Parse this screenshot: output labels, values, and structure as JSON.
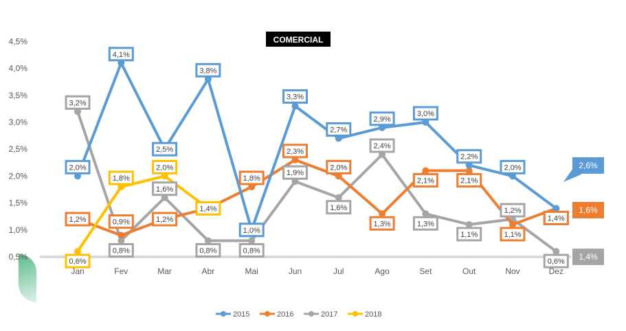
{
  "chart_data": {
    "type": "line",
    "title": "COMERCIAL",
    "categories": [
      "Jan",
      "Fev",
      "Mar",
      "Abr",
      "Mai",
      "Jun",
      "Jul",
      "Ago",
      "Set",
      "Out",
      "Nov",
      "Dez"
    ],
    "y_ticks": [
      "0,5%",
      "1,0%",
      "1,5%",
      "2,0%",
      "2,5%",
      "3,0%",
      "3,5%",
      "4,0%",
      "4,5%"
    ],
    "ylim": [
      0.5,
      4.5
    ],
    "grid": false,
    "legend_position": "bottom",
    "series": [
      {
        "name": "2015",
        "color": "#5b9bd5",
        "values": [
          2.0,
          4.1,
          2.5,
          3.8,
          1.0,
          3.3,
          2.7,
          2.9,
          3.0,
          2.2,
          2.0,
          1.4
        ],
        "labels": [
          "2,0%",
          "4,1%",
          "2,5%",
          "3,8%",
          "1,0%",
          "3,3%",
          "2,7%",
          "2,9%",
          "3,0%",
          "2,2%",
          "2,0%",
          "1,4%"
        ]
      },
      {
        "name": "2016",
        "color": "#ed7d31",
        "values": [
          1.2,
          0.9,
          1.2,
          1.4,
          1.8,
          2.3,
          2.0,
          1.3,
          2.1,
          2.1,
          1.1,
          1.4
        ],
        "labels": [
          "1,2%",
          "",
          "1,2%",
          "",
          "1,8%",
          "2,3%",
          "2,0%",
          "1,3%",
          "2,1%",
          "2,1%",
          "1,1%",
          "1,4%"
        ]
      },
      {
        "name": "2017",
        "color": "#a5a5a5",
        "values": [
          3.2,
          0.8,
          1.6,
          0.8,
          0.8,
          1.9,
          1.6,
          2.4,
          1.3,
          1.1,
          1.2,
          0.6
        ],
        "labels": [
          "3,2%",
          "0,8%",
          "1,6%",
          "0,8%",
          "0,8%",
          "1,9%",
          "1,6%",
          "2,4%",
          "1,3%",
          "1,1%",
          "1,2%",
          "0,6%"
        ]
      },
      {
        "name": "2018",
        "color": "#ffc000",
        "values": [
          0.6,
          1.8,
          2.0,
          1.4,
          null,
          null,
          null,
          null,
          null,
          null,
          null,
          null
        ],
        "labels": [
          "0,6%",
          "1,8%",
          "2,0%",
          "1,4%",
          "",
          "",
          "",
          "",
          "",
          "",
          "",
          ""
        ]
      }
    ],
    "extra_labels": [
      {
        "series": "2016",
        "index": 1,
        "text": "0,9%"
      }
    ],
    "annotations": [
      {
        "text": "2,6%",
        "color": "#5b9bd5",
        "value": 2.6
      },
      {
        "text": "1,6%",
        "color": "#ed7d31",
        "value": 1.6
      },
      {
        "text": "1,4%",
        "color": "#a5a5a5",
        "value": 1.4
      }
    ]
  }
}
